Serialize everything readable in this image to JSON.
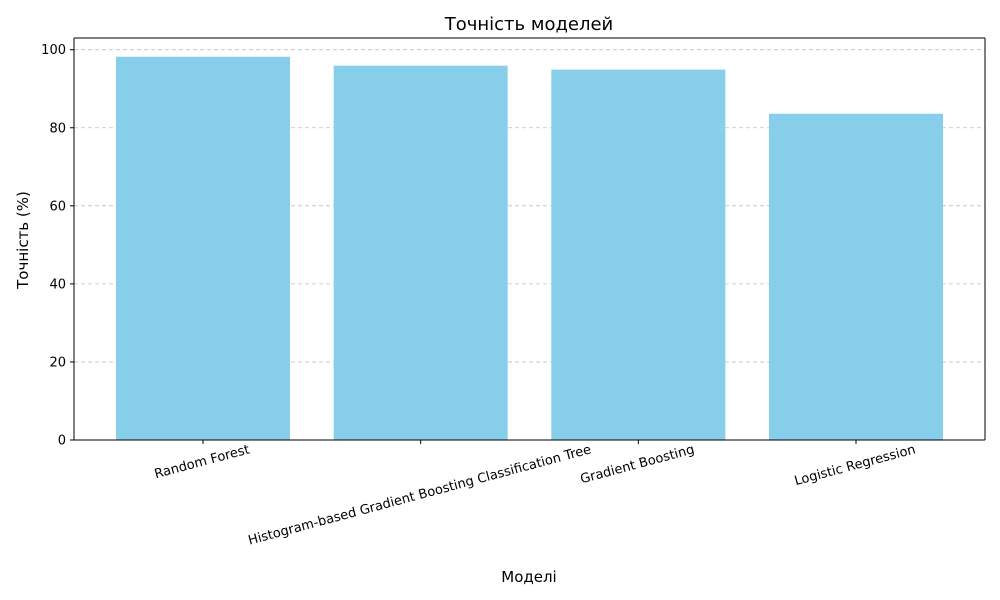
{
  "chart_data": {
    "type": "bar",
    "title": "Точність моделей",
    "xlabel": "Моделі",
    "ylabel": "Точність (%)",
    "categories": [
      "Random Forest",
      "Histogram-based Gradient Boosting Classification Tree",
      "Gradient Boosting",
      "Logistic Regression"
    ],
    "values": [
      98.2,
      95.9,
      94.9,
      83.6
    ],
    "ylim": [
      0,
      103
    ],
    "yticks": [
      0,
      20,
      40,
      60,
      80,
      100
    ],
    "grid": "y",
    "bar_color": "#87ceeb"
  }
}
